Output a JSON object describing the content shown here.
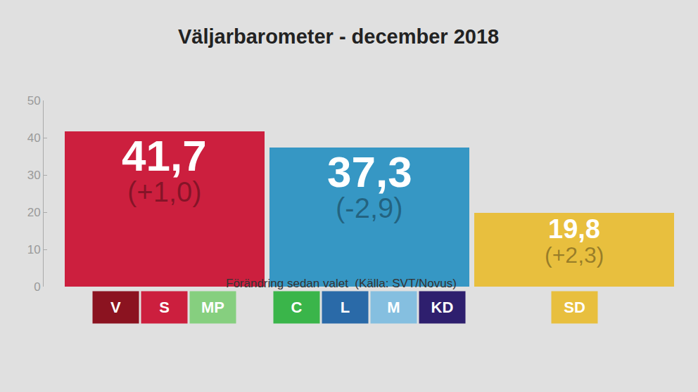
{
  "chart_data": {
    "type": "bar",
    "title": "Väljarbarometer - december 2018",
    "subtitle": "Förändring sedan valet  (Källa: SVT/Novus)",
    "categories": [
      null,
      null,
      null
    ],
    "values": [
      41.7,
      37.3,
      19.8
    ],
    "value_labels": [
      "41,7",
      "37,3",
      "19,8"
    ],
    "change_labels": [
      "(+1,0)",
      "(-2,9)",
      "(+2,3)"
    ],
    "colors": [
      "#cc1f3e",
      "#3697c4",
      "#e8bf3e"
    ],
    "party_groups": [
      [
        {
          "label": "V",
          "color": "#8b1320"
        },
        {
          "label": "S",
          "color": "#cc1f3e"
        },
        {
          "label": "MP",
          "color": "#86cf7f"
        }
      ],
      [
        {
          "label": "C",
          "color": "#3ab54a"
        },
        {
          "label": "L",
          "color": "#2a6aa8"
        },
        {
          "label": "M",
          "color": "#85bfe0"
        },
        {
          "label": "KD",
          "color": "#2e1f6e"
        }
      ],
      [
        {
          "label": "SD",
          "color": "#e8bf3e"
        }
      ]
    ],
    "ylim": [
      0,
      50
    ],
    "yticks": [
      0,
      10,
      20,
      30,
      40,
      50
    ],
    "data_labels": true,
    "grid": false
  }
}
